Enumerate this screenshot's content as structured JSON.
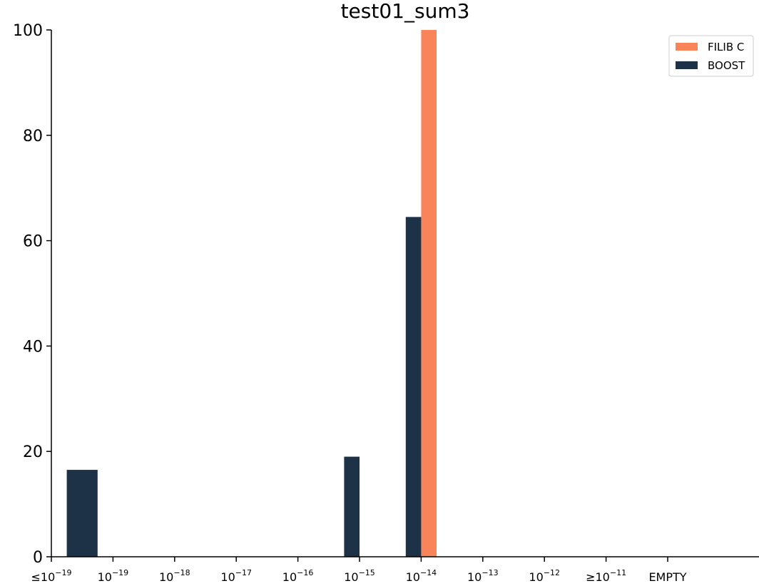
{
  "chart_data": {
    "type": "bar",
    "title": "test01_sum3",
    "xlabel": "",
    "ylabel": "",
    "ylim": [
      0,
      100
    ],
    "yticks": [
      0,
      20,
      40,
      60,
      80,
      100
    ],
    "categories": [
      {
        "base": "≤10",
        "exp": "−19"
      },
      {
        "base": "10",
        "exp": "−19"
      },
      {
        "base": "10",
        "exp": "−18"
      },
      {
        "base": "10",
        "exp": "−17"
      },
      {
        "base": "10",
        "exp": "−16"
      },
      {
        "base": "10",
        "exp": "−15"
      },
      {
        "base": "10",
        "exp": "−14"
      },
      {
        "base": "10",
        "exp": "−13"
      },
      {
        "base": "10",
        "exp": "−12"
      },
      {
        "base": "≥10",
        "exp": "−11"
      },
      {
        "base": "EMPTY",
        "exp": ""
      }
    ],
    "series": [
      {
        "name": "FILIB C",
        "color": "#f9845a",
        "values": [
          0,
          0,
          0,
          0,
          0,
          0,
          100,
          0,
          0,
          0,
          0
        ]
      },
      {
        "name": "BOOST",
        "color": "#1d3247",
        "values": [
          16.5,
          0,
          0,
          0,
          0,
          19,
          64.5,
          0,
          0,
          0,
          0
        ]
      }
    ],
    "legend_position": "top-right",
    "grid": false
  }
}
